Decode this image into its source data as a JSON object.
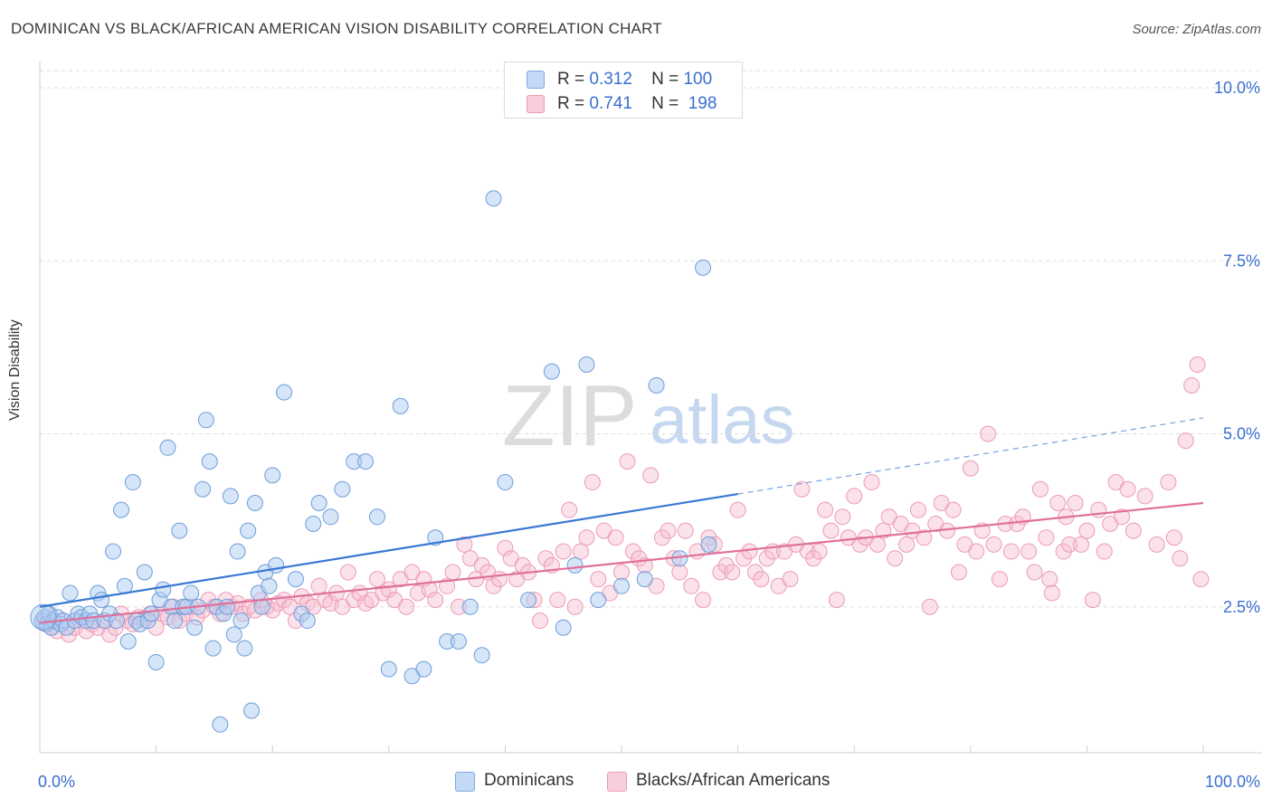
{
  "header": {
    "title": "DOMINICAN VS BLACK/AFRICAN AMERICAN VISION DISABILITY CORRELATION CHART",
    "source": "Source: ZipAtlas.com"
  },
  "watermark": {
    "zip": "ZIP",
    "atlas": "atlas"
  },
  "legend": {
    "rows": [
      {
        "r_label": "R =",
        "r_value": "0.312",
        "n_label": "N =",
        "n_value": "100",
        "color": "#a9c6f0"
      },
      {
        "r_label": "R =",
        "r_value": "0.741",
        "n_label": "N =",
        "n_value": "198",
        "color": "#f5b8cb"
      }
    ]
  },
  "bottom_legend": [
    {
      "label": "Dominicans",
      "color": "#a9c6f0"
    },
    {
      "label": "Blacks/African Americans",
      "color": "#f5b8cb"
    }
  ],
  "colors": {
    "blue": "#3a78d4",
    "blue_fill": "#aecbf2",
    "pink": "#e0709a",
    "pink_fill": "#f7bed0",
    "grid": "#dddddd",
    "tick_label": "#3a6fd0"
  },
  "chart_data": {
    "type": "scatter",
    "title": "DOMINICAN VS BLACK/AFRICAN AMERICAN VISION DISABILITY CORRELATION CHART",
    "xlabel": "",
    "ylabel": "Vision Disability",
    "xlim": [
      0,
      100
    ],
    "ylim": [
      0,
      10.5
    ],
    "x_tick_labels": [
      "0.0%",
      "100.0%"
    ],
    "y_ticks": [
      2.5,
      5.0,
      7.5,
      10.0
    ],
    "y_tick_labels": [
      "2.5%",
      "5.0%",
      "7.5%",
      "10.0%"
    ],
    "grid": true,
    "series": [
      {
        "name": "Dominicans",
        "r": 0.312,
        "n": 100,
        "trend": {
          "x0": 0,
          "y0": 2.5,
          "x1": 60,
          "y1": 4.13,
          "dash_to_x": 100,
          "dash_to_y": 5.23
        },
        "points": [
          [
            0.2,
            2.3
          ],
          [
            0.4,
            2.35
          ],
          [
            0.6,
            2.25
          ],
          [
            0.8,
            2.4
          ],
          [
            1.0,
            2.2
          ],
          [
            1.2,
            2.3
          ],
          [
            1.5,
            2.35
          ],
          [
            1.8,
            2.25
          ],
          [
            2.0,
            2.3
          ],
          [
            2.3,
            2.2
          ],
          [
            2.6,
            2.7
          ],
          [
            3.0,
            2.3
          ],
          [
            3.3,
            2.4
          ],
          [
            3.6,
            2.35
          ],
          [
            4.0,
            2.3
          ],
          [
            4.3,
            2.4
          ],
          [
            4.6,
            2.3
          ],
          [
            5.0,
            2.7
          ],
          [
            5.3,
            2.6
          ],
          [
            5.6,
            2.3
          ],
          [
            6.0,
            2.4
          ],
          [
            6.3,
            3.3
          ],
          [
            6.6,
            2.3
          ],
          [
            7.0,
            3.9
          ],
          [
            7.3,
            2.8
          ],
          [
            7.6,
            2.0
          ],
          [
            8.0,
            4.3
          ],
          [
            8.3,
            2.3
          ],
          [
            8.6,
            2.25
          ],
          [
            9.0,
            3.0
          ],
          [
            9.3,
            2.3
          ],
          [
            9.6,
            2.4
          ],
          [
            10.0,
            1.7
          ],
          [
            10.3,
            2.6
          ],
          [
            10.6,
            2.75
          ],
          [
            11.0,
            4.8
          ],
          [
            11.3,
            2.5
          ],
          [
            11.6,
            2.3
          ],
          [
            12.0,
            3.6
          ],
          [
            12.3,
            2.5
          ],
          [
            12.6,
            2.5
          ],
          [
            13.0,
            2.7
          ],
          [
            13.3,
            2.2
          ],
          [
            13.6,
            2.5
          ],
          [
            14.0,
            4.2
          ],
          [
            14.3,
            5.2
          ],
          [
            14.6,
            4.6
          ],
          [
            14.9,
            1.9
          ],
          [
            15.2,
            2.5
          ],
          [
            15.5,
            0.8
          ],
          [
            15.8,
            2.4
          ],
          [
            16.1,
            2.5
          ],
          [
            16.4,
            4.1
          ],
          [
            16.7,
            2.1
          ],
          [
            17.0,
            3.3
          ],
          [
            17.3,
            2.3
          ],
          [
            17.6,
            1.9
          ],
          [
            17.9,
            3.6
          ],
          [
            18.2,
            1.0
          ],
          [
            18.5,
            4.0
          ],
          [
            18.8,
            2.7
          ],
          [
            19.1,
            2.5
          ],
          [
            19.4,
            3.0
          ],
          [
            19.7,
            2.8
          ],
          [
            20.0,
            4.4
          ],
          [
            20.3,
            3.1
          ],
          [
            21.0,
            5.6
          ],
          [
            22.0,
            2.9
          ],
          [
            22.5,
            2.4
          ],
          [
            23.0,
            2.3
          ],
          [
            23.5,
            3.7
          ],
          [
            24.0,
            4.0
          ],
          [
            25.0,
            3.8
          ],
          [
            26.0,
            4.2
          ],
          [
            27.0,
            4.6
          ],
          [
            28.0,
            4.6
          ],
          [
            29.0,
            3.8
          ],
          [
            30.0,
            1.6
          ],
          [
            31.0,
            5.4
          ],
          [
            32.0,
            1.5
          ],
          [
            33.0,
            1.6
          ],
          [
            34.0,
            3.5
          ],
          [
            35.0,
            2.0
          ],
          [
            36.0,
            2.0
          ],
          [
            37.0,
            2.5
          ],
          [
            38.0,
            1.8
          ],
          [
            39.0,
            8.4
          ],
          [
            40.0,
            4.3
          ],
          [
            42.0,
            2.6
          ],
          [
            44.0,
            5.9
          ],
          [
            45.0,
            2.2
          ],
          [
            46.0,
            3.1
          ],
          [
            47.0,
            6.0
          ],
          [
            48.0,
            2.6
          ],
          [
            50.0,
            2.8
          ],
          [
            52.0,
            2.9
          ],
          [
            53.0,
            5.7
          ],
          [
            55.0,
            3.2
          ],
          [
            57.0,
            7.4
          ],
          [
            57.5,
            3.4
          ]
        ]
      },
      {
        "name": "Blacks/African Americans",
        "r": 0.741,
        "n": 198,
        "trend": {
          "x0": 0,
          "y0": 2.27,
          "x1": 100,
          "y1": 4.0
        },
        "points": [
          [
            0.5,
            2.3
          ],
          [
            1.0,
            2.2
          ],
          [
            1.5,
            2.15
          ],
          [
            2.0,
            2.3
          ],
          [
            2.5,
            2.1
          ],
          [
            3.0,
            2.2
          ],
          [
            3.5,
            2.3
          ],
          [
            4.0,
            2.15
          ],
          [
            4.5,
            2.25
          ],
          [
            5.0,
            2.2
          ],
          [
            5.5,
            2.3
          ],
          [
            6.0,
            2.1
          ],
          [
            6.5,
            2.2
          ],
          [
            7.0,
            2.4
          ],
          [
            7.5,
            2.3
          ],
          [
            8.0,
            2.25
          ],
          [
            8.5,
            2.35
          ],
          [
            9.0,
            2.3
          ],
          [
            9.5,
            2.4
          ],
          [
            10.0,
            2.2
          ],
          [
            10.5,
            2.4
          ],
          [
            11.0,
            2.35
          ],
          [
            11.5,
            2.5
          ],
          [
            12.0,
            2.3
          ],
          [
            12.5,
            2.4
          ],
          [
            13.0,
            2.5
          ],
          [
            13.5,
            2.35
          ],
          [
            14.0,
            2.45
          ],
          [
            14.5,
            2.6
          ],
          [
            15.0,
            2.5
          ],
          [
            15.5,
            2.4
          ],
          [
            16.0,
            2.6
          ],
          [
            16.5,
            2.5
          ],
          [
            17.0,
            2.55
          ],
          [
            17.5,
            2.4
          ],
          [
            18.0,
            2.5
          ],
          [
            18.5,
            2.45
          ],
          [
            19.0,
            2.6
          ],
          [
            19.5,
            2.5
          ],
          [
            20.0,
            2.45
          ],
          [
            20.5,
            2.55
          ],
          [
            21.0,
            2.6
          ],
          [
            21.5,
            2.5
          ],
          [
            22.0,
            2.3
          ],
          [
            22.5,
            2.65
          ],
          [
            23.0,
            2.55
          ],
          [
            23.5,
            2.5
          ],
          [
            24.0,
            2.8
          ],
          [
            24.5,
            2.6
          ],
          [
            25.0,
            2.55
          ],
          [
            25.5,
            2.7
          ],
          [
            26.0,
            2.5
          ],
          [
            26.5,
            3.0
          ],
          [
            27.0,
            2.6
          ],
          [
            27.5,
            2.7
          ],
          [
            28.0,
            2.55
          ],
          [
            28.5,
            2.6
          ],
          [
            29.0,
            2.9
          ],
          [
            29.5,
            2.7
          ],
          [
            30.0,
            2.75
          ],
          [
            30.5,
            2.6
          ],
          [
            31.0,
            2.9
          ],
          [
            31.5,
            2.5
          ],
          [
            32.0,
            3.0
          ],
          [
            32.5,
            2.7
          ],
          [
            33.0,
            2.9
          ],
          [
            33.5,
            2.75
          ],
          [
            34.0,
            2.6
          ],
          [
            35.0,
            2.8
          ],
          [
            35.5,
            3.0
          ],
          [
            36.0,
            2.5
          ],
          [
            36.5,
            3.4
          ],
          [
            37.0,
            3.2
          ],
          [
            37.5,
            2.9
          ],
          [
            38.0,
            3.1
          ],
          [
            38.5,
            3.0
          ],
          [
            39.0,
            2.8
          ],
          [
            39.5,
            2.9
          ],
          [
            40.0,
            3.35
          ],
          [
            40.5,
            3.2
          ],
          [
            41.0,
            2.9
          ],
          [
            41.5,
            3.1
          ],
          [
            42.0,
            3.0
          ],
          [
            42.5,
            2.6
          ],
          [
            43.0,
            2.3
          ],
          [
            43.5,
            3.2
          ],
          [
            44.0,
            3.1
          ],
          [
            44.5,
            2.6
          ],
          [
            45.0,
            3.3
          ],
          [
            45.5,
            3.9
          ],
          [
            46.0,
            2.5
          ],
          [
            46.5,
            3.3
          ],
          [
            47.0,
            3.5
          ],
          [
            47.5,
            4.3
          ],
          [
            48.0,
            2.9
          ],
          [
            48.5,
            3.6
          ],
          [
            49.0,
            2.7
          ],
          [
            49.5,
            3.5
          ],
          [
            50.0,
            3.0
          ],
          [
            50.5,
            4.6
          ],
          [
            51.0,
            3.3
          ],
          [
            51.5,
            3.2
          ],
          [
            52.0,
            3.1
          ],
          [
            52.5,
            4.4
          ],
          [
            53.0,
            2.8
          ],
          [
            53.5,
            3.5
          ],
          [
            54.0,
            3.6
          ],
          [
            54.5,
            3.2
          ],
          [
            55.0,
            3.0
          ],
          [
            55.5,
            3.6
          ],
          [
            56.0,
            2.8
          ],
          [
            56.5,
            3.3
          ],
          [
            57.0,
            2.6
          ],
          [
            57.5,
            3.5
          ],
          [
            58.0,
            3.4
          ],
          [
            58.5,
            3.0
          ],
          [
            59.0,
            3.1
          ],
          [
            59.5,
            3.0
          ],
          [
            60.0,
            3.9
          ],
          [
            60.5,
            3.2
          ],
          [
            61.0,
            3.3
          ],
          [
            61.5,
            3.0
          ],
          [
            62.0,
            2.9
          ],
          [
            62.5,
            3.2
          ],
          [
            63.0,
            3.3
          ],
          [
            63.5,
            2.8
          ],
          [
            64.0,
            3.3
          ],
          [
            64.5,
            2.9
          ],
          [
            65.0,
            3.4
          ],
          [
            65.5,
            4.2
          ],
          [
            66.0,
            3.3
          ],
          [
            66.5,
            3.2
          ],
          [
            67.0,
            3.3
          ],
          [
            67.5,
            3.9
          ],
          [
            68.0,
            3.6
          ],
          [
            68.5,
            2.6
          ],
          [
            69.0,
            3.8
          ],
          [
            69.5,
            3.5
          ],
          [
            70.0,
            4.1
          ],
          [
            70.5,
            3.4
          ],
          [
            71.0,
            3.5
          ],
          [
            71.5,
            4.3
          ],
          [
            72.0,
            3.4
          ],
          [
            72.5,
            3.6
          ],
          [
            73.0,
            3.8
          ],
          [
            73.5,
            3.2
          ],
          [
            74.0,
            3.7
          ],
          [
            74.5,
            3.4
          ],
          [
            75.0,
            3.6
          ],
          [
            75.5,
            3.9
          ],
          [
            76.0,
            3.5
          ],
          [
            76.5,
            2.5
          ],
          [
            77.0,
            3.7
          ],
          [
            77.5,
            4.0
          ],
          [
            78.0,
            3.6
          ],
          [
            78.5,
            3.9
          ],
          [
            79.0,
            3.0
          ],
          [
            79.5,
            3.4
          ],
          [
            80.0,
            4.5
          ],
          [
            80.5,
            3.3
          ],
          [
            81.0,
            3.6
          ],
          [
            81.5,
            5.0
          ],
          [
            82.0,
            3.4
          ],
          [
            82.5,
            2.9
          ],
          [
            83.0,
            3.7
          ],
          [
            83.5,
            3.3
          ],
          [
            84.0,
            3.7
          ],
          [
            84.5,
            3.8
          ],
          [
            85.0,
            3.3
          ],
          [
            85.5,
            3.0
          ],
          [
            86.0,
            4.2
          ],
          [
            86.5,
            3.5
          ],
          [
            87.0,
            2.7
          ],
          [
            87.5,
            4.0
          ],
          [
            88.0,
            3.3
          ],
          [
            88.5,
            3.4
          ],
          [
            89.0,
            4.0
          ],
          [
            89.5,
            3.4
          ],
          [
            90.0,
            3.6
          ],
          [
            90.5,
            2.6
          ],
          [
            91.0,
            3.9
          ],
          [
            91.5,
            3.3
          ],
          [
            92.0,
            3.7
          ],
          [
            92.5,
            4.3
          ],
          [
            93.0,
            3.8
          ],
          [
            93.5,
            4.2
          ],
          [
            94.0,
            3.6
          ],
          [
            95.0,
            4.1
          ],
          [
            97.0,
            4.3
          ],
          [
            98.0,
            3.2
          ],
          [
            98.5,
            4.9
          ],
          [
            99.0,
            5.7
          ],
          [
            99.5,
            6.0
          ],
          [
            99.8,
            2.9
          ],
          [
            96.0,
            3.4
          ],
          [
            97.5,
            3.5
          ],
          [
            88.2,
            3.8
          ],
          [
            86.8,
            2.9
          ]
        ]
      }
    ]
  }
}
